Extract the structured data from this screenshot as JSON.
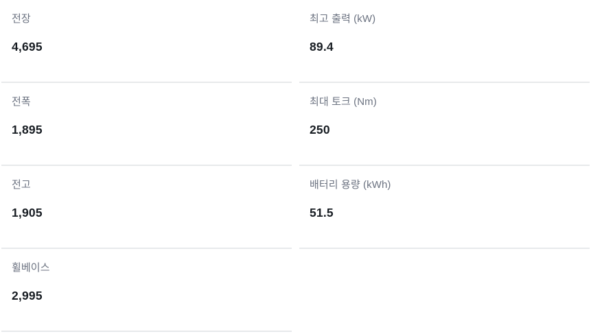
{
  "colors": {
    "background": "#ffffff",
    "label_text": "#6b7280",
    "value_text": "#171c22",
    "divider": "#e7e9eb"
  },
  "spec_table": {
    "columns": [
      {
        "items": [
          {
            "label": "전장",
            "value": "4,695"
          },
          {
            "label": "전폭",
            "value": "1,895"
          },
          {
            "label": "전고",
            "value": "1,905"
          },
          {
            "label": "휠베이스",
            "value": "2,995"
          }
        ]
      },
      {
        "items": [
          {
            "label": "최고 출력 (kW)",
            "value": "89.4"
          },
          {
            "label": "최대 토크 (Nm)",
            "value": "250"
          },
          {
            "label": "배터리 용량 (kWh)",
            "value": "51.5"
          }
        ]
      }
    ]
  }
}
